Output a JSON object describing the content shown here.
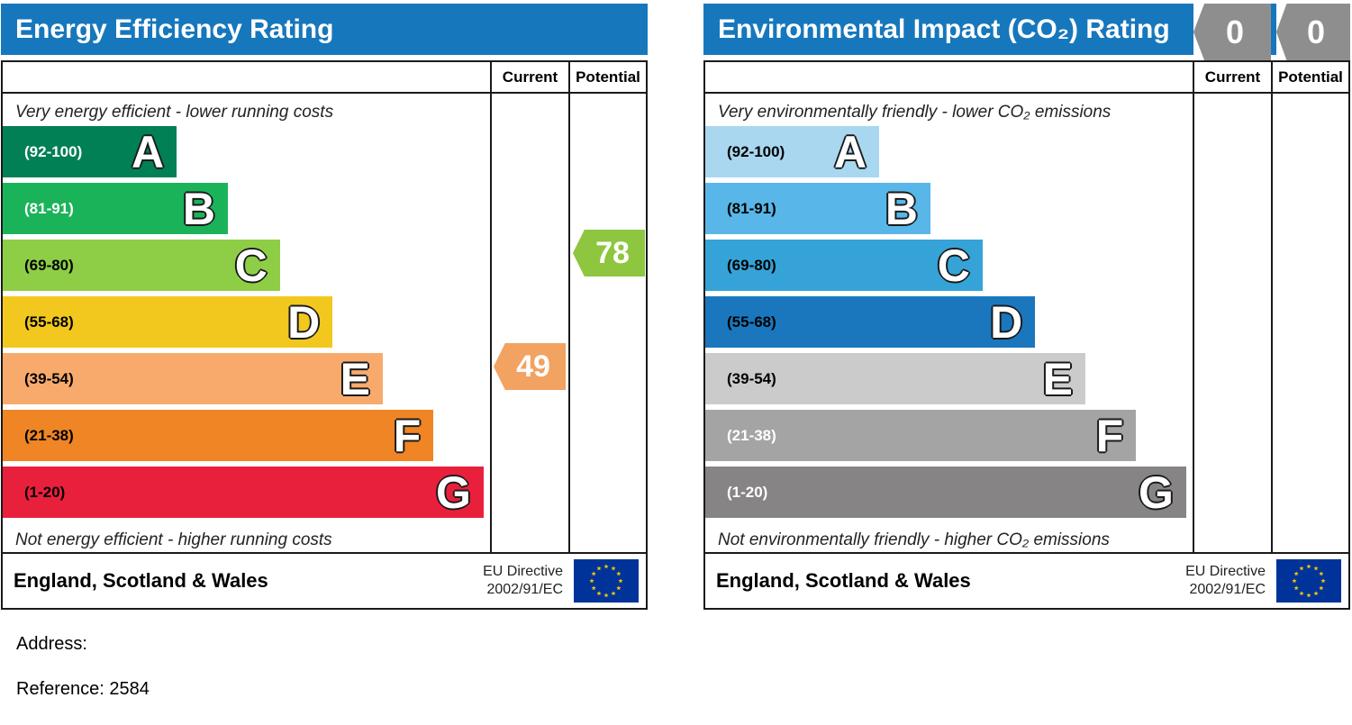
{
  "page": {
    "address_label": "Address:",
    "reference_label": "Reference: 2584",
    "background": "#ffffff",
    "header_blue": "#1777bc"
  },
  "chart_data": [
    {
      "type": "bar",
      "title": "Energy Efficiency Rating",
      "columns": {
        "current": "Current",
        "potential": "Potential"
      },
      "top_caption": "Very energy efficient - lower running costs",
      "bottom_caption": "Not energy efficient - higher running costs",
      "categories": [
        "A",
        "B",
        "C",
        "D",
        "E",
        "F",
        "G"
      ],
      "bands": [
        {
          "letter": "A",
          "range": "(92-100)",
          "color": "#008054",
          "text_color": "#ffffff",
          "width_pct": 35.7
        },
        {
          "letter": "B",
          "range": "(81-91)",
          "color": "#1bb35a",
          "text_color": "#ffffff",
          "width_pct": 46.2
        },
        {
          "letter": "C",
          "range": "(69-80)",
          "color": "#8dce46",
          "text_color": "#000000",
          "width_pct": 56.9
        },
        {
          "letter": "D",
          "range": "(55-68)",
          "color": "#f2c81e",
          "text_color": "#000000",
          "width_pct": 67.7
        },
        {
          "letter": "E",
          "range": "(39-54)",
          "color": "#f8aa6c",
          "text_color": "#000000",
          "width_pct": 78.0
        },
        {
          "letter": "F",
          "range": "(21-38)",
          "color": "#ef8524",
          "text_color": "#000000",
          "width_pct": 88.4
        },
        {
          "letter": "G",
          "range": "(1-20)",
          "color": "#e9203c",
          "text_color": "#000000",
          "width_pct": 98.7
        }
      ],
      "markers": [
        {
          "column": "current",
          "value": "49",
          "band": "E",
          "row": 4,
          "color": "#f2a261"
        },
        {
          "column": "potential",
          "value": "78",
          "band": "C",
          "row": 2,
          "color": "#8ec63f"
        }
      ],
      "footer": {
        "region": "England, Scotland & Wales",
        "directive_line1": "EU Directive",
        "directive_line2": "2002/91/EC",
        "flag_field": "#003399",
        "flag_stars": "#ffcc00"
      }
    },
    {
      "type": "bar",
      "title": "Environmental Impact (CO₂) Rating",
      "columns": {
        "current": "Current",
        "potential": "Potential"
      },
      "top_caption": "Very environmentally friendly - lower CO₂ emissions",
      "bottom_caption": "Not environmentally friendly - higher CO₂ emissions",
      "categories": [
        "A",
        "B",
        "C",
        "D",
        "E",
        "F",
        "G"
      ],
      "bands": [
        {
          "letter": "A",
          "range": "(92-100)",
          "color": "#a9d7f0",
          "text_color": "#000000",
          "width_pct": 35.7
        },
        {
          "letter": "B",
          "range": "(81-91)",
          "color": "#58b6e8",
          "text_color": "#000000",
          "width_pct": 46.2
        },
        {
          "letter": "C",
          "range": "(69-80)",
          "color": "#35a3d8",
          "text_color": "#000000",
          "width_pct": 56.9
        },
        {
          "letter": "D",
          "range": "(55-68)",
          "color": "#1a77be",
          "text_color": "#000000",
          "width_pct": 67.7
        },
        {
          "letter": "E",
          "range": "(39-54)",
          "color": "#cccbcb",
          "text_color": "#000000",
          "width_pct": 78.0
        },
        {
          "letter": "F",
          "range": "(21-38)",
          "color": "#a5a4a4",
          "text_color": "#ffffff",
          "width_pct": 88.4
        },
        {
          "letter": "G",
          "range": "(1-20)",
          "color": "#868484",
          "text_color": "#ffffff",
          "width_pct": 98.7
        }
      ],
      "markers": [],
      "header_badges": {
        "current": "0",
        "potential": "0",
        "color": "#8f8e8e"
      },
      "footer": {
        "region": "England, Scotland & Wales",
        "directive_line1": "EU Directive",
        "directive_line2": "2002/91/EC",
        "flag_field": "#003399",
        "flag_stars": "#ffcc00"
      }
    }
  ]
}
